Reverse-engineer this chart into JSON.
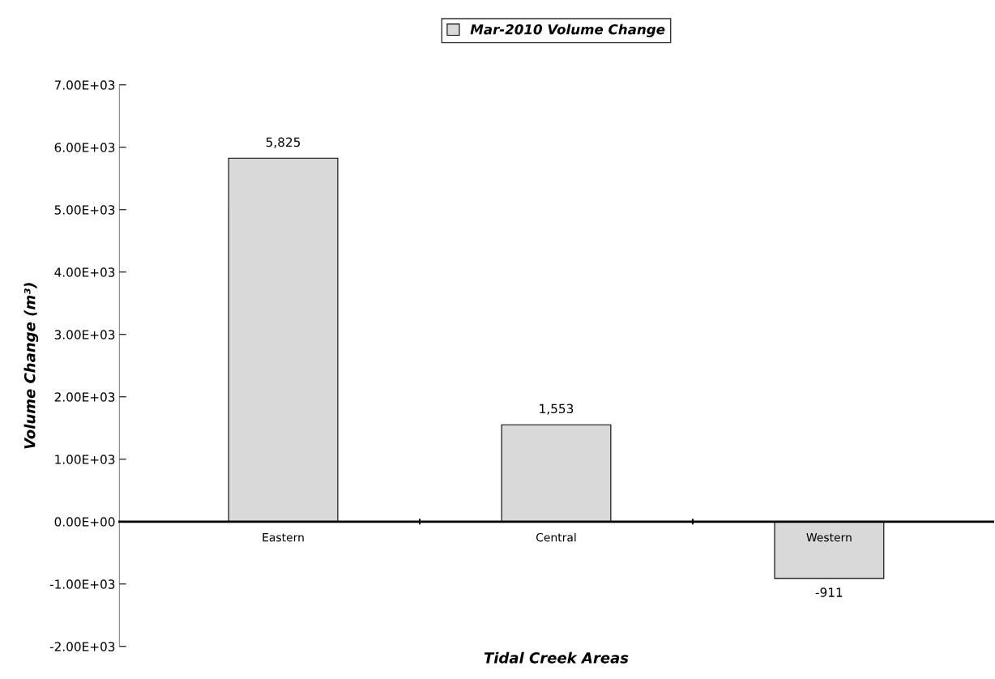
{
  "chart_data": {
    "type": "bar",
    "xlabel": "Tidal Creek Areas",
    "ylabel": "Volume Change (m³)",
    "categories": [
      "Eastern",
      "Central",
      "Western"
    ],
    "series": [
      {
        "name": "Mar-2010 Volume Change",
        "color": "#d9d9d9",
        "values": [
          5825,
          1553,
          -911
        ],
        "value_labels": [
          "5,825",
          "1,553",
          "-911"
        ]
      }
    ],
    "ylim": [
      -2000,
      7000
    ],
    "yticks": [
      {
        "value": -2000,
        "label": "-2.00E+03"
      },
      {
        "value": -1000,
        "label": "-1.00E+03"
      },
      {
        "value": 0,
        "label": "0.00E+00"
      },
      {
        "value": 1000,
        "label": "1.00E+03"
      },
      {
        "value": 2000,
        "label": "2.00E+03"
      },
      {
        "value": 3000,
        "label": "3.00E+03"
      },
      {
        "value": 4000,
        "label": "4.00E+03"
      },
      {
        "value": 5000,
        "label": "5.00E+03"
      },
      {
        "value": 6000,
        "label": "6.00E+03"
      },
      {
        "value": 7000,
        "label": "7.00E+03"
      }
    ],
    "grid": false,
    "legend": "top"
  }
}
